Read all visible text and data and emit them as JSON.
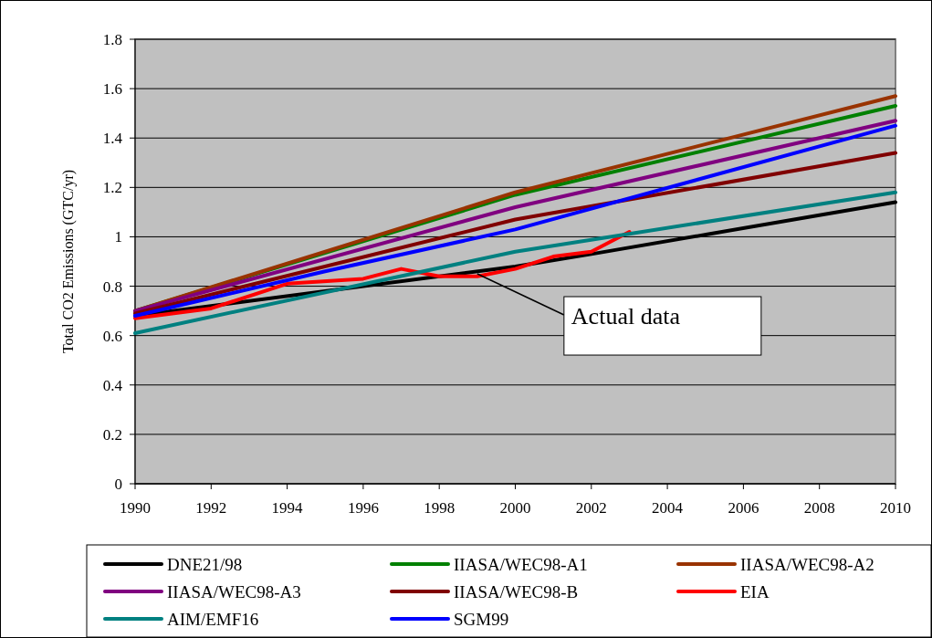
{
  "chart_data": {
    "type": "line",
    "ylabel": "Total CO2 Emissions (GTC/yr)",
    "xlim": [
      1990,
      2010
    ],
    "xticks": [
      1990,
      1992,
      1994,
      1996,
      1998,
      2000,
      2002,
      2004,
      2006,
      2008,
      2010
    ],
    "ylim": [
      0,
      1.8
    ],
    "yticks": [
      0,
      0.2,
      0.4,
      0.6,
      0.8,
      1,
      1.2,
      1.4,
      1.6,
      1.8
    ],
    "grid": "y",
    "legend": "bottom",
    "line_style": "solid",
    "marker": "none",
    "annotations": [
      {
        "text": "Actual data",
        "x": 1999,
        "y": 0.85
      }
    ],
    "series": [
      {
        "name": "DNE21/98",
        "color": "#000000",
        "x": [
          1990,
          2000,
          2002,
          2010
        ],
        "values": [
          0.68,
          0.88,
          0.93,
          1.14
        ]
      },
      {
        "name": "IIASA/WEC98-A1",
        "color": "#008000",
        "x": [
          1990,
          2000,
          2010
        ],
        "values": [
          0.7,
          1.17,
          1.53
        ]
      },
      {
        "name": "IIASA/WEC98-A2",
        "color": "#993300",
        "x": [
          1990,
          2000,
          2010
        ],
        "values": [
          0.7,
          1.18,
          1.57
        ]
      },
      {
        "name": "IIASA/WEC98-A3",
        "color": "#800080",
        "x": [
          1990,
          2000,
          2010
        ],
        "values": [
          0.7,
          1.12,
          1.47
        ]
      },
      {
        "name": "IIASA/WEC98-B",
        "color": "#800000",
        "x": [
          1990,
          2000,
          2010
        ],
        "values": [
          0.69,
          1.07,
          1.34
        ]
      },
      {
        "name": "EIA",
        "color": "#ff0000",
        "x": [
          1990,
          1992,
          1994,
          1996,
          1997,
          1998,
          1999,
          2000,
          2001,
          2002,
          2003
        ],
        "values": [
          0.67,
          0.71,
          0.81,
          0.83,
          0.87,
          0.84,
          0.84,
          0.87,
          0.92,
          0.94,
          1.02
        ]
      },
      {
        "name": "AIM/EMF16",
        "color": "#008080",
        "x": [
          1990,
          2000,
          2010
        ],
        "values": [
          0.61,
          0.94,
          1.18
        ]
      },
      {
        "name": "SGM99",
        "color": "#0000ff",
        "x": [
          1990,
          1995,
          2000,
          2010
        ],
        "values": [
          0.68,
          0.86,
          1.03,
          1.45
        ]
      }
    ]
  }
}
